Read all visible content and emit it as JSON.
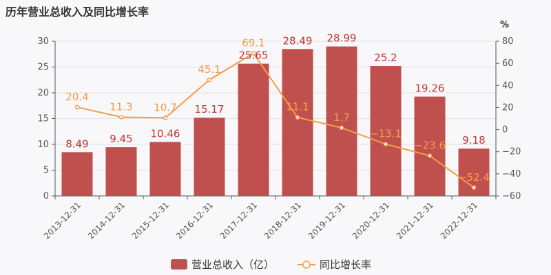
{
  "chart_data": {
    "type": "bar",
    "title": "历年营业总收入及同比增长率",
    "categories": [
      "2013-12-31",
      "2014-12-31",
      "2015-12-31",
      "2016-12-31",
      "2017-12-31",
      "2018-12-31",
      "2019-12-31",
      "2020-12-31",
      "2021-12-31",
      "2022-12-31"
    ],
    "series": [
      {
        "name": "营业总收入（亿）",
        "type": "bar",
        "axis": "left",
        "values": [
          8.49,
          9.45,
          10.46,
          15.17,
          25.65,
          28.49,
          28.99,
          25.2,
          19.26,
          9.18
        ],
        "labels": [
          "8.49",
          "9.45",
          "10.46",
          "15.17",
          "25.65",
          "28.49",
          "28.99",
          "25.2",
          "19.26",
          "9.18"
        ],
        "color": "#c0504d"
      },
      {
        "name": "同比增长率",
        "type": "line",
        "axis": "right",
        "values": [
          20.4,
          11.3,
          10.7,
          45.1,
          69.1,
          11.1,
          1.7,
          -13.1,
          -23.6,
          -52.4
        ],
        "labels": [
          "20.4",
          "11.3",
          "10.7",
          "45.1",
          "69.1",
          "11.1",
          "1.7",
          "−13.1",
          "−23.6",
          "−52.4"
        ],
        "color": "#f59d4a"
      }
    ],
    "y_left": {
      "range": [
        0,
        30
      ],
      "ticks": [
        "0",
        "5",
        "10",
        "15",
        "20",
        "25",
        "30"
      ]
    },
    "y_right": {
      "range": [
        -60,
        80
      ],
      "ticks": [
        "−60",
        "−40",
        "−20",
        "0",
        "20",
        "40",
        "60",
        "80"
      ],
      "unit": "%"
    },
    "grid": true,
    "legend": "bottom-center"
  }
}
